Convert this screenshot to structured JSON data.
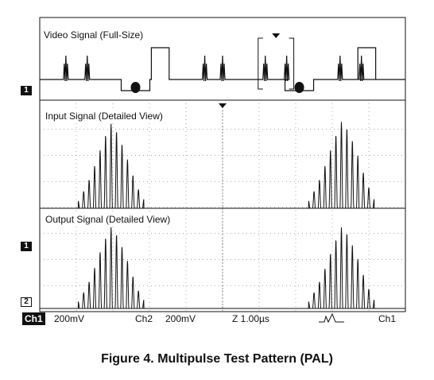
{
  "caption": "Figure 4. Multipulse Test Pattern (PAL)",
  "chart_data": [
    {
      "type": "line",
      "panel": "video",
      "title": "Video Signal (Full-Size)",
      "ylim": [
        0,
        10
      ],
      "pulse_bursts_x": [
        0.6,
        1.2,
        4.5,
        5.0,
        6.2,
        6.8,
        8.3,
        8.9
      ],
      "sync_pulses_x": [
        2.6,
        7.2
      ],
      "white_levels": [
        [
          3.0,
          3.5
        ],
        [
          8.8,
          9.3
        ]
      ]
    },
    {
      "type": "line",
      "panel": "input",
      "title": "Input Signal (Detailed View)",
      "xlabel": "",
      "ylabel": "",
      "xlim": [
        0,
        10
      ],
      "ylim": [
        -0.1,
        1.0
      ],
      "grid": true,
      "series": [
        {
          "x": [
            1.05,
            1.2,
            1.35,
            1.5,
            1.65,
            1.8,
            1.95,
            2.1,
            2.25,
            2.4,
            2.55,
            2.7,
            2.85
          ],
          "values": [
            0.08,
            0.18,
            0.3,
            0.45,
            0.62,
            0.78,
            0.9,
            0.82,
            0.68,
            0.52,
            0.35,
            0.2,
            0.1
          ]
        },
        {
          "x": [
            7.35,
            7.5,
            7.65,
            7.8,
            7.95,
            8.1,
            8.25,
            8.4,
            8.55,
            8.7,
            8.85,
            9.0,
            9.15
          ],
          "values": [
            0.08,
            0.18,
            0.3,
            0.45,
            0.62,
            0.78,
            0.92,
            0.85,
            0.72,
            0.56,
            0.38,
            0.22,
            0.1
          ]
        }
      ]
    },
    {
      "type": "line",
      "panel": "output",
      "title": "Output Signal (Detailed View)",
      "xlim": [
        0,
        10
      ],
      "ylim": [
        -0.1,
        1.0
      ],
      "grid": true,
      "series": [
        {
          "x": [
            1.05,
            1.2,
            1.35,
            1.5,
            1.65,
            1.8,
            1.95,
            2.1,
            2.25,
            2.4,
            2.55,
            2.7,
            2.85
          ],
          "values": [
            0.08,
            0.18,
            0.3,
            0.46,
            0.64,
            0.8,
            0.92,
            0.84,
            0.7,
            0.54,
            0.36,
            0.2,
            0.1
          ]
        },
        {
          "x": [
            7.35,
            7.5,
            7.65,
            7.8,
            7.95,
            8.1,
            8.25,
            8.4,
            8.55,
            8.7,
            8.85,
            9.0,
            9.15
          ],
          "values": [
            0.08,
            0.18,
            0.3,
            0.45,
            0.62,
            0.78,
            0.92,
            0.85,
            0.72,
            0.56,
            0.38,
            0.22,
            0.1
          ]
        }
      ]
    }
  ],
  "markers": {
    "ch1": "1",
    "ch2": "2"
  },
  "status": {
    "ch1_label": "Ch1",
    "ch1_scale": "200mV",
    "ch2_label": "Ch2",
    "ch2_scale": "200mV",
    "timebase": "Z 1.00µs",
    "trigger_source": "Ch1"
  }
}
